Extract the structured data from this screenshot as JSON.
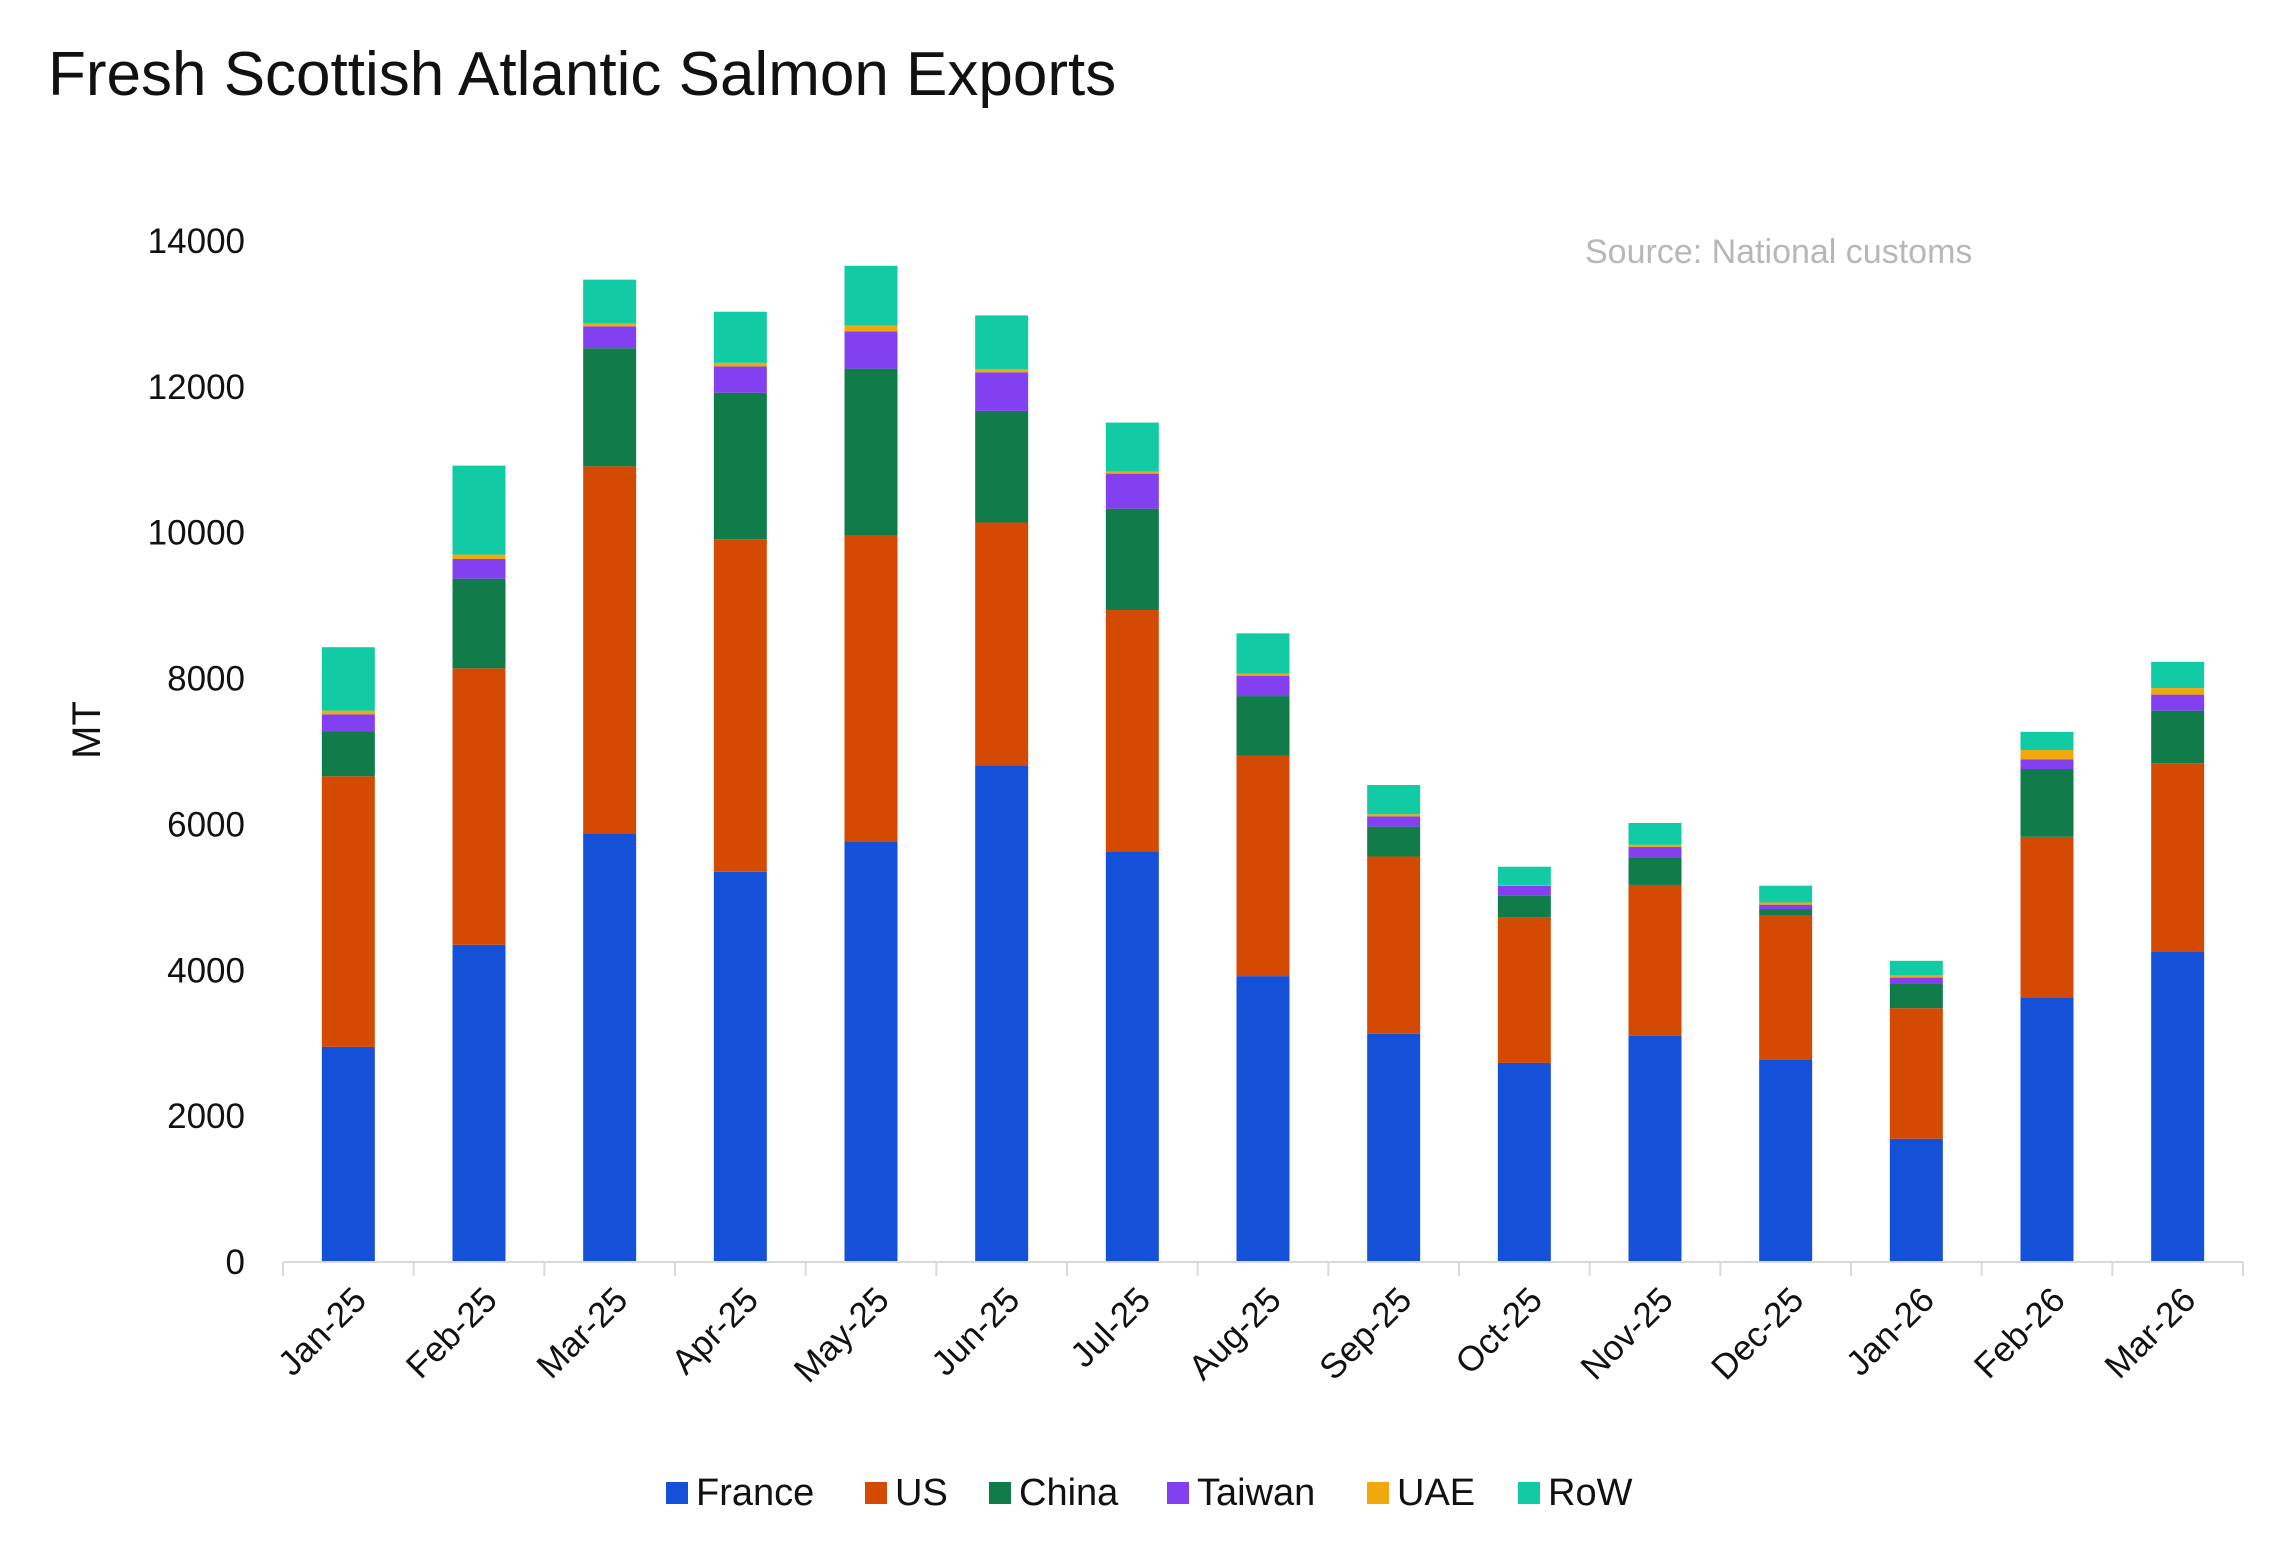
{
  "chart_data": {
    "type": "bar",
    "stacked": true,
    "title": "Fresh Scottish Atlantic Salmon Exports",
    "source_note": "Source: National customs",
    "ylabel": "MT",
    "xlabel": "",
    "ylim": [
      0,
      14000
    ],
    "yticks": [
      0,
      2000,
      4000,
      6000,
      8000,
      10000,
      12000,
      14000
    ],
    "grid": false,
    "legend_position": "bottom",
    "categories": [
      "Jan-25",
      "Feb-25",
      "Mar-25",
      "Apr-25",
      "May-25",
      "Jun-25",
      "Jul-25",
      "Aug-25",
      "Sep-25",
      "Oct-25",
      "Nov-25",
      "Dec-25",
      "Jan-26",
      "Feb-26",
      "Mar-26"
    ],
    "series": [
      {
        "name": "France",
        "color": "#1550d8",
        "values": [
          2950,
          4350,
          5880,
          5350,
          5770,
          6810,
          5630,
          3920,
          3130,
          2730,
          3100,
          2770,
          1690,
          3630,
          4260
        ]
      },
      {
        "name": "US",
        "color": "#d54a03",
        "values": [
          3710,
          3790,
          5030,
          4560,
          4190,
          3330,
          3310,
          3020,
          2430,
          2000,
          2070,
          1980,
          1790,
          2200,
          2580
        ]
      },
      {
        "name": "China",
        "color": "#107c49",
        "values": [
          620,
          1230,
          1620,
          2010,
          2290,
          1530,
          1390,
          820,
          410,
          290,
          370,
          90,
          340,
          930,
          720
        ]
      },
      {
        "name": "Taiwan",
        "color": "#8340f0",
        "values": [
          230,
          270,
          300,
          360,
          510,
          530,
          480,
          280,
          140,
          140,
          150,
          60,
          80,
          130,
          220
        ]
      },
      {
        "name": "UAE",
        "color": "#f0a80c",
        "values": [
          50,
          60,
          40,
          50,
          80,
          40,
          30,
          30,
          30,
          10,
          30,
          30,
          30,
          130,
          90
        ]
      },
      {
        "name": "RoW",
        "color": "#10cba3",
        "values": [
          870,
          1220,
          600,
          700,
          820,
          740,
          670,
          550,
          400,
          250,
          300,
          230,
          200,
          250,
          360
        ]
      }
    ]
  }
}
